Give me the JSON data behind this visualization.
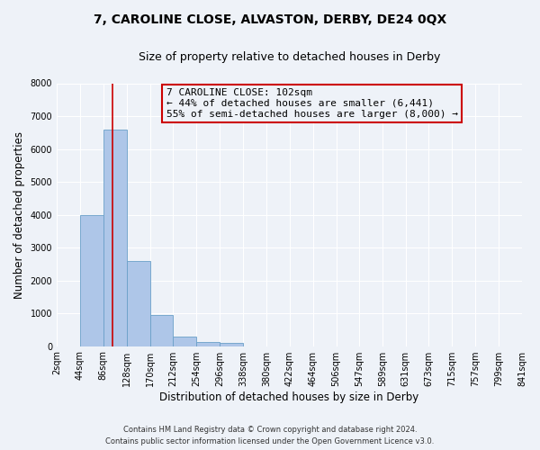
{
  "title": "7, CAROLINE CLOSE, ALVASTON, DERBY, DE24 0QX",
  "subtitle": "Size of property relative to detached houses in Derby",
  "xlabel": "Distribution of detached houses by size in Derby",
  "ylabel": "Number of detached properties",
  "footer_line1": "Contains HM Land Registry data © Crown copyright and database right 2024.",
  "footer_line2": "Contains public sector information licensed under the Open Government Licence v3.0.",
  "bar_edges": [
    2,
    44,
    86,
    128,
    170,
    212,
    254,
    296,
    338,
    380,
    422,
    464,
    506,
    547,
    589,
    631,
    673,
    715,
    757,
    799,
    841
  ],
  "bar_heights": [
    0,
    4000,
    6600,
    2600,
    950,
    300,
    120,
    85,
    0,
    0,
    0,
    0,
    0,
    0,
    0,
    0,
    0,
    0,
    0,
    0
  ],
  "bar_color": "#aec6e8",
  "bar_edge_color": "#6aa0c8",
  "vline_x": 102,
  "vline_color": "#cc0000",
  "annotation_title": "7 CAROLINE CLOSE: 102sqm",
  "annotation_line1": "← 44% of detached houses are smaller (6,441)",
  "annotation_line2": "55% of semi-detached houses are larger (8,000) →",
  "annotation_box_color": "#cc0000",
  "ylim": [
    0,
    8000
  ],
  "yticks": [
    0,
    1000,
    2000,
    3000,
    4000,
    5000,
    6000,
    7000,
    8000
  ],
  "tick_labels": [
    "2sqm",
    "44sqm",
    "86sqm",
    "128sqm",
    "170sqm",
    "212sqm",
    "254sqm",
    "296sqm",
    "338sqm",
    "380sqm",
    "422sqm",
    "464sqm",
    "506sqm",
    "547sqm",
    "589sqm",
    "631sqm",
    "673sqm",
    "715sqm",
    "757sqm",
    "799sqm",
    "841sqm"
  ],
  "bg_color": "#eef2f8",
  "grid_color": "#ffffff",
  "title_fontsize": 10,
  "subtitle_fontsize": 9,
  "axis_label_fontsize": 8.5,
  "tick_fontsize": 7,
  "annotation_fontsize": 8,
  "footer_fontsize": 6
}
